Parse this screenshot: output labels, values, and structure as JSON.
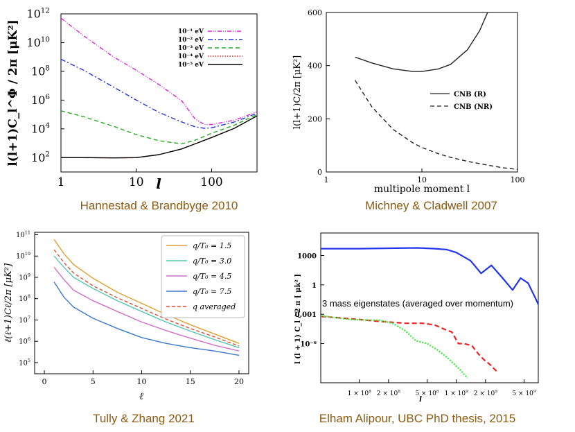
{
  "chart_data": [
    {
      "type": "line",
      "title": "",
      "xlabel": "l",
      "ylabel": "l(l+1)C_l^Φ / 2π  [μK²]",
      "xscale": "log",
      "yscale": "log",
      "xlim": [
        1,
        400
      ],
      "ylim": [
        10,
        1000000000000.0
      ],
      "xticks": [
        1,
        10,
        100
      ],
      "xtick_labels": [
        "1",
        "10",
        "100"
      ],
      "yticks": [
        100,
        10000,
        1000000.0,
        100000000.0,
        10000000000.0,
        1000000000000.0
      ],
      "ytick_labels": [
        [
          "10",
          "2"
        ],
        [
          "10",
          "4"
        ],
        [
          "10",
          "6"
        ],
        [
          "10",
          "8"
        ],
        [
          "10",
          "10"
        ],
        [
          "10",
          "12"
        ]
      ],
      "legend_position": "top-right",
      "series": [
        {
          "name": "10⁻¹ eV",
          "color": "#dd22dd",
          "dash": "6 2 1 2 1 2",
          "x": [
            1,
            2,
            5,
            10,
            20,
            40,
            60,
            80,
            100,
            200,
            400
          ],
          "y": [
            500000000000.0,
            30000000000.0,
            1000000000.0,
            120000000.0,
            12000000.0,
            900000.0,
            50000.0,
            20000.0,
            20000.0,
            40000.0,
            150000.0
          ]
        },
        {
          "name": "10⁻² eV",
          "color": "#2233dd",
          "dash": "7 3 2 3",
          "x": [
            1,
            2,
            5,
            10,
            20,
            40,
            60,
            80,
            100,
            200,
            400
          ],
          "y": [
            700000000.0,
            120000000.0,
            8000000.0,
            1000000.0,
            140000.0,
            30000.0,
            14000.0,
            11000.0,
            12000.0,
            30000.0,
            120000.0
          ]
        },
        {
          "name": "10⁻³ eV",
          "color": "#22aa22",
          "dash": "6 4",
          "x": [
            1,
            2,
            5,
            10,
            20,
            40,
            60,
            80,
            100,
            200,
            400
          ],
          "y": [
            180000.0,
            70000.0,
            15000.0,
            4000.0,
            1500.0,
            900,
            1600.0,
            3000.0,
            5000.0,
            18000.0,
            100000.0
          ]
        },
        {
          "name": "10⁻⁴ eV",
          "color": "#dd2222",
          "dash": "1.5 2",
          "x": [
            1,
            2,
            5,
            10,
            20,
            40,
            60,
            80,
            100,
            200,
            400
          ],
          "y": [
            100,
            100,
            95,
            100,
            160,
            400,
            900,
            1600,
            2500,
            11000.0,
            80000.0
          ]
        },
        {
          "name": "10⁻⁵ eV",
          "color": "#000000",
          "dash": "",
          "x": [
            1,
            2,
            5,
            10,
            20,
            40,
            60,
            80,
            100,
            200,
            400
          ],
          "y": [
            100,
            100,
            95,
            100,
            160,
            400,
            900,
            1600,
            2500,
            11000.0,
            80000.0
          ]
        }
      ],
      "caption": "Hannestad & Brandbyge 2010"
    },
    {
      "type": "line",
      "title": "",
      "xlabel": "multipole moment l",
      "ylabel": "l(l+1)C/2π [μK²]",
      "xscale": "log",
      "yscale": "linear",
      "xlim": [
        1,
        100
      ],
      "ylim": [
        0,
        600
      ],
      "xticks": [
        1,
        10,
        100
      ],
      "xtick_labels": [
        "1",
        "10",
        "100"
      ],
      "yticks": [
        0,
        200,
        400,
        600
      ],
      "ytick_labels": [
        "0",
        "200",
        "400",
        "600"
      ],
      "legend_position": "middle-right",
      "series": [
        {
          "name": "CNB (R)",
          "color": "#222222",
          "dash": "",
          "x": [
            2,
            3,
            5,
            8,
            10,
            15,
            20,
            30,
            40,
            50
          ],
          "y": [
            432,
            410,
            388,
            378,
            378,
            388,
            405,
            460,
            530,
            610
          ]
        },
        {
          "name": "CNB (NR)",
          "color": "#222222",
          "dash": "6 4",
          "x": [
            2,
            3,
            5,
            8,
            10,
            15,
            20,
            30,
            50,
            70,
            100
          ],
          "y": [
            345,
            245,
            160,
            110,
            92,
            68,
            55,
            40,
            25,
            16,
            10
          ]
        }
      ],
      "caption": "Michney & Cladwell 2007"
    },
    {
      "type": "line",
      "title": "",
      "xlabel": "ℓ",
      "ylabel": "ℓ(ℓ+1)Cℓ/2π  [μK²]",
      "xscale": "linear",
      "yscale": "log",
      "xlim": [
        -1,
        21
      ],
      "ylim": [
        30000.0,
        130000000000.0
      ],
      "xticks": [
        0,
        5,
        10,
        15,
        20
      ],
      "xtick_labels": [
        "0",
        "5",
        "10",
        "15",
        "20"
      ],
      "yticks": [
        100000.0,
        1000000.0,
        10000000.0,
        100000000.0,
        1000000000.0,
        10000000000.0,
        100000000000.0
      ],
      "ytick_labels": [
        [
          "10",
          "5"
        ],
        [
          "10",
          "6"
        ],
        [
          "10",
          "7"
        ],
        [
          "10",
          "8"
        ],
        [
          "10",
          "9"
        ],
        [
          "10",
          "10"
        ],
        [
          "10",
          "11"
        ]
      ],
      "legend_position": "top-right",
      "series": [
        {
          "name": "q/T₀ = 1.5",
          "color": "#E0A030",
          "dash": "",
          "x": [
            1,
            2,
            3,
            5,
            7.5,
            10,
            12.5,
            15,
            17.5,
            20
          ],
          "y": [
            60000000000.0,
            13000000000.0,
            4000000000.0,
            900000000.0,
            200000000.0,
            60000000.0,
            18000000.0,
            6000000.0,
            2200000.0,
            800000.0
          ]
        },
        {
          "name": "q/T₀ = 3.0",
          "color": "#55C8B0",
          "dash": "",
          "x": [
            1,
            2,
            3,
            5,
            7.5,
            10,
            12.5,
            15,
            17.5,
            20
          ],
          "y": [
            10000000000.0,
            3000000000.0,
            1000000000.0,
            300000000.0,
            80000000.0,
            25000000.0,
            8000000.0,
            3000000.0,
            1200000.0,
            500000.0
          ]
        },
        {
          "name": "q/T₀ = 4.5",
          "color": "#D070C8",
          "dash": "",
          "x": [
            1,
            2,
            3,
            5,
            7.5,
            10,
            12.5,
            15,
            17.5,
            20
          ],
          "y": [
            3000000000.0,
            800000000.0,
            250000000.0,
            80000000.0,
            25000000.0,
            8000000.0,
            3200000.0,
            1400000.0,
            650000.0,
            350000.0
          ]
        },
        {
          "name": "q/T₀ = 7.5",
          "color": "#3A78C8",
          "dash": "",
          "x": [
            1,
            2,
            3,
            5,
            7.5,
            10,
            12.5,
            15,
            17.5,
            20
          ],
          "y": [
            600000000.0,
            120000000.0,
            40000000.0,
            12000000.0,
            4000000.0,
            1500000.0,
            800000.0,
            500000.0,
            350000.0,
            220000.0
          ]
        },
        {
          "name": "q averaged",
          "color": "#E05030",
          "dash": "5 3",
          "x": [
            1,
            2,
            3,
            5,
            7.5,
            10,
            12.5,
            15,
            17.5,
            20
          ],
          "y": [
            20000000000.0,
            5000000000.0,
            1600000000.0,
            400000000.0,
            110000000.0,
            35000000.0,
            11000000.0,
            4000000.0,
            1600000.0,
            600000.0
          ]
        }
      ],
      "caption": "Tully & Zhang 2021"
    },
    {
      "type": "line",
      "title": "",
      "annotation": "3 mass eigenstates (averaged over momentum)",
      "xlabel": "l",
      "ylabel": "l (l + 1)  C_l / 2 π  [ μk² ]",
      "xscale": "log",
      "yscale": "log",
      "xlim": [
        40000000,
        7000000000
      ],
      "ylim": [
        1e-10,
        200000.0
      ],
      "xtick_values": [
        100000000,
        200000000,
        500000000,
        1000000000,
        2000000000,
        5000000000
      ],
      "xtick_labels": [
        [
          "1 × 10",
          "8"
        ],
        [
          "2 × 10",
          "8"
        ],
        [
          "5 × 10",
          "8"
        ],
        [
          "1 × 10",
          "9"
        ],
        [
          "2 × 10",
          "9"
        ],
        [
          "5 × 10",
          "9"
        ]
      ],
      "yticks": [
        1e-06,
        0.001,
        1,
        1000
      ],
      "ytick_labels": [
        "10⁻⁶",
        "0.001",
        "1",
        "1000"
      ],
      "series": [
        {
          "name": "blue",
          "color": "#2233ee",
          "dash": "",
          "x": [
            40000000,
            100000000,
            200000000,
            400000000,
            600000000,
            800000000,
            1000000000,
            1400000000,
            1800000000,
            2300000000,
            3000000000,
            3800000000,
            4600000000,
            5500000000,
            6500000000,
            7000000000
          ],
          "y": [
            5000,
            5000,
            5500,
            6000,
            5000,
            4000,
            2000,
            300,
            15,
            100,
            5,
            0.3,
            5,
            1.5,
            0.05,
            0.01
          ]
        },
        {
          "name": "red",
          "color": "#ee2222",
          "dash": "7 4",
          "x": [
            40000000,
            80000000,
            150000000,
            300000000,
            450000000,
            600000000,
            750000000,
            900000000,
            1050000000,
            1200000000,
            1450000000,
            1700000000,
            1950000000,
            2200000000,
            2600000000
          ],
          "y": [
            0.0006,
            0.00035,
            0.0002,
            0.00012,
            0.00012,
            8e-05,
            3e-05,
            1.5e-05,
            1e-06,
            1e-06,
            6e-07,
            8e-08,
            2e-08,
            8e-09,
            1.5e-09
          ]
        },
        {
          "name": "green",
          "color": "#33ee33",
          "dash": "2 2",
          "x": [
            40000000,
            80000000,
            120000000,
            160000000,
            220000000,
            300000000,
            380000000,
            500000000,
            650000000,
            800000000,
            950000000,
            1100000000,
            1300000000
          ],
          "y": [
            0.0007,
            0.0003,
            0.00025,
            0.00025,
            0.00012,
            2e-05,
            2e-06,
            1e-06,
            2e-07,
            4e-08,
            8e-09,
            2e-09,
            3e-10
          ]
        }
      ],
      "caption": "Elham Alipour, UBC PhD thesis, 2015"
    }
  ]
}
